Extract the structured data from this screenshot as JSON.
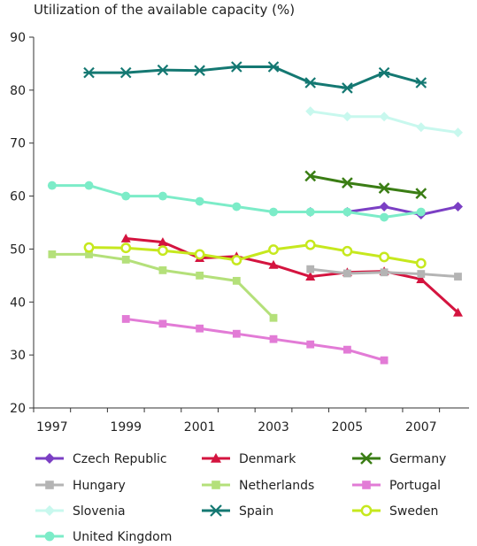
{
  "chart_data": {
    "type": "line",
    "title": "Utilization of the available capacity (%)",
    "xlabel": "",
    "ylabel": "",
    "xlim": [
      1996.5,
      2008.3
    ],
    "ylim": [
      20,
      90
    ],
    "x_ticks": [
      1997,
      1999,
      2001,
      2003,
      2005,
      2007
    ],
    "y_ticks": [
      20,
      30,
      40,
      50,
      60,
      70,
      80,
      90
    ],
    "grid": false,
    "legend_position": "bottom",
    "series": [
      {
        "name": "Czech Republic",
        "color": "#7B3FC4",
        "marker": "diamond",
        "x": [
          2004,
          2005,
          2006,
          2007,
          2008
        ],
        "y": [
          57,
          57,
          58,
          56.5,
          58
        ]
      },
      {
        "name": "Denmark",
        "color": "#D4143F",
        "marker": "triangle",
        "x": [
          1999,
          2000,
          2001,
          2002,
          2003,
          2004,
          2005,
          2006,
          2007,
          2008
        ],
        "y": [
          52,
          51.3,
          48.3,
          48.6,
          47,
          44.8,
          45.6,
          45.8,
          44.3,
          38
        ]
      },
      {
        "name": "Germany",
        "color": "#3A7D14",
        "marker": "x",
        "x": [
          2004,
          2005,
          2006,
          2007
        ],
        "y": [
          63.8,
          62.5,
          61.5,
          60.5
        ]
      },
      {
        "name": "Hungary",
        "color": "#B4B4B4",
        "marker": "square",
        "x": [
          2004,
          2005,
          2006,
          2007,
          2008
        ],
        "y": [
          46.2,
          45.4,
          45.6,
          45.3,
          44.8
        ]
      },
      {
        "name": "Netherlands",
        "color": "#B4E07A",
        "marker": "square",
        "x": [
          1997,
          1998,
          1999,
          2000,
          2001,
          2002,
          2003
        ],
        "y": [
          49,
          49,
          48,
          46,
          45,
          44,
          37
        ]
      },
      {
        "name": "Portugal",
        "color": "#E27BD6",
        "marker": "square",
        "x": [
          1999,
          2000,
          2001,
          2002,
          2003,
          2004,
          2005,
          2006
        ],
        "y": [
          36.8,
          35.9,
          35,
          34,
          33,
          32,
          31,
          29
        ]
      },
      {
        "name": "Slovenia",
        "color": "#C8F8EE",
        "marker": "diamond",
        "x": [
          2004,
          2005,
          2006,
          2007,
          2008
        ],
        "y": [
          76,
          75,
          75,
          73,
          72
        ]
      },
      {
        "name": "Spain",
        "color": "#147872",
        "marker": "asterisk",
        "x": [
          1998,
          1999,
          2000,
          2001,
          2002,
          2003,
          2004,
          2005,
          2006,
          2007
        ],
        "y": [
          83.3,
          83.3,
          83.8,
          83.7,
          84.4,
          84.4,
          81.4,
          80.4,
          83.3,
          81.4
        ]
      },
      {
        "name": "Sweden",
        "color": "#C6E81E",
        "marker": "circle-open",
        "x": [
          1998,
          1999,
          2000,
          2001,
          2002,
          2003,
          2004,
          2005,
          2006,
          2007
        ],
        "y": [
          50.3,
          50.2,
          49.7,
          49,
          47.9,
          49.9,
          50.8,
          49.6,
          48.5,
          47.3
        ]
      },
      {
        "name": "United Kingdom",
        "color": "#7CECC8",
        "marker": "circle",
        "x": [
          1997,
          1998,
          1999,
          2000,
          2001,
          2002,
          2003,
          2004,
          2005,
          2006,
          2007
        ],
        "y": [
          62,
          62,
          60,
          60,
          59,
          58,
          57,
          57,
          57,
          56,
          57
        ]
      }
    ]
  }
}
